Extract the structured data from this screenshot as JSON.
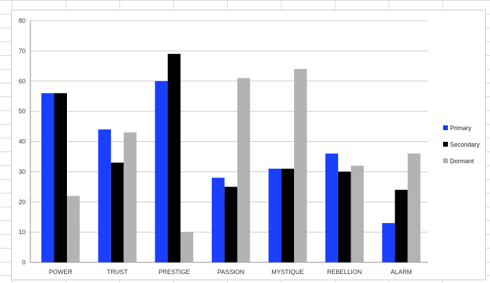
{
  "chart_data": {
    "type": "bar",
    "categories": [
      "POWER",
      "TRUST",
      "PRESTIGE",
      "PASSION",
      "MYSTIQUE",
      "REBELLION",
      "ALARM"
    ],
    "series": [
      {
        "name": "Primary",
        "color": "#1a3fff",
        "values": [
          56,
          44,
          60,
          28,
          31,
          36,
          13
        ]
      },
      {
        "name": "Secondary",
        "color": "#000000",
        "values": [
          56,
          33,
          69,
          25,
          31,
          30,
          24
        ]
      },
      {
        "name": "Dormant",
        "color": "#b3b3b3",
        "values": [
          22,
          43,
          10,
          61,
          64,
          32,
          36
        ]
      }
    ],
    "ylim": [
      0,
      80
    ],
    "yticks": [
      0,
      10,
      20,
      30,
      40,
      50,
      60,
      70,
      80
    ],
    "grid": true,
    "legend": "right"
  }
}
